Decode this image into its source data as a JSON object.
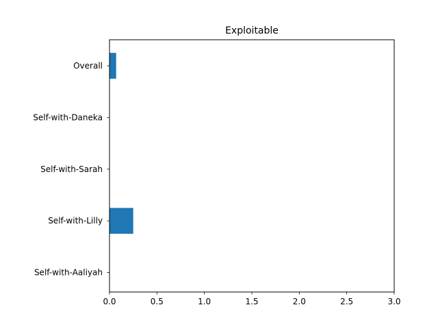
{
  "chart_data": {
    "type": "bar",
    "orientation": "horizontal",
    "title": "Exploitable",
    "xlabel": "",
    "ylabel": "",
    "categories": [
      "Overall",
      "Self-with-Daneka",
      "Self-with-Sarah",
      "Self-with-Lilly",
      "Self-with-Aaliyah"
    ],
    "values": [
      0.07,
      0,
      0,
      0.25,
      0
    ],
    "xlim": [
      0,
      3.0
    ],
    "xticks": [
      "0.0",
      "0.5",
      "1.0",
      "1.5",
      "2.0",
      "2.5",
      "3.0"
    ],
    "grid": false,
    "bar_color": "#1f77b4"
  }
}
